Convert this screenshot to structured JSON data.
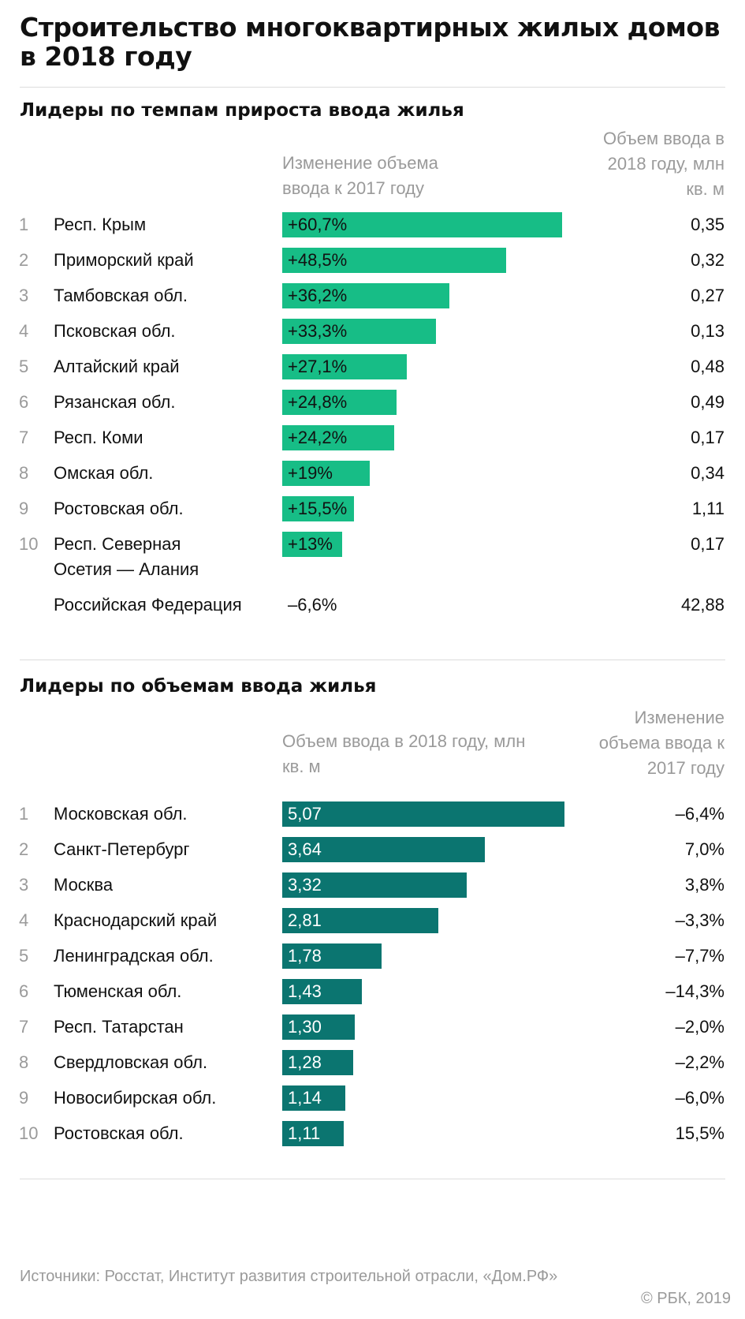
{
  "title": "Строительство многоквартирных жилых домов в 2018 году",
  "chart_data": [
    {
      "type": "bar",
      "title": "Лидеры по темпам прироста ввода жилья",
      "bar_header": "Изменение объема ввода к 2017 году",
      "value_header": "Объем ввода в 2018 году, млн кв. м",
      "color": "#17bd86",
      "rows": [
        {
          "rank": "1",
          "region": "Респ. Крым",
          "change": 60.7,
          "change_label": "+60,7%",
          "volume_label": "0,35"
        },
        {
          "rank": "2",
          "region": "Приморский край",
          "change": 48.5,
          "change_label": "+48,5%",
          "volume_label": "0,32"
        },
        {
          "rank": "3",
          "region": "Тамбовская обл.",
          "change": 36.2,
          "change_label": "+36,2%",
          "volume_label": "0,27"
        },
        {
          "rank": "4",
          "region": "Псковская обл.",
          "change": 33.3,
          "change_label": "+33,3%",
          "volume_label": "0,13"
        },
        {
          "rank": "5",
          "region": "Алтайский край",
          "change": 27.1,
          "change_label": "+27,1%",
          "volume_label": "0,48"
        },
        {
          "rank": "6",
          "region": "Рязанская обл.",
          "change": 24.8,
          "change_label": "+24,8%",
          "volume_label": "0,49"
        },
        {
          "rank": "7",
          "region": "Респ. Коми",
          "change": 24.2,
          "change_label": "+24,2%",
          "volume_label": "0,17"
        },
        {
          "rank": "8",
          "region": "Омская обл.",
          "change": 19,
          "change_label": "+19%",
          "volume_label": "0,34"
        },
        {
          "rank": "9",
          "region": "Ростовская обл.",
          "change": 15.5,
          "change_label": "+15,5%",
          "volume_label": "1,11"
        },
        {
          "rank": "10",
          "region": "Респ. Северная Осетия — Алания",
          "change": 13,
          "change_label": "+13%",
          "volume_label": "0,17"
        }
      ],
      "total": {
        "region": "Российская Федерация",
        "change_label": "–6,6%",
        "volume_label": "42,88"
      }
    },
    {
      "type": "bar",
      "title": "Лидеры по объемам ввода жилья",
      "bar_header": "Объем ввода в 2018 году, млн кв. м",
      "value_header": "Изменение объема ввода к 2017 году",
      "color": "#0b7570",
      "rows": [
        {
          "rank": "1",
          "region": "Московская обл.",
          "volume": 5.07,
          "volume_label": "5,07",
          "change_label": "–6,4%"
        },
        {
          "rank": "2",
          "region": "Санкт-Петербург",
          "volume": 3.64,
          "volume_label": "3,64",
          "change_label": "7,0%"
        },
        {
          "rank": "3",
          "region": "Москва",
          "volume": 3.32,
          "volume_label": "3,32",
          "change_label": "3,8%"
        },
        {
          "rank": "4",
          "region": "Краснодарский край",
          "volume": 2.81,
          "volume_label": "2,81",
          "change_label": "–3,3%"
        },
        {
          "rank": "5",
          "region": "Ленинградская обл.",
          "volume": 1.78,
          "volume_label": "1,78",
          "change_label": "–7,7%"
        },
        {
          "rank": "6",
          "region": "Тюменская обл.",
          "volume": 1.43,
          "volume_label": "1,43",
          "change_label": "–14,3%"
        },
        {
          "rank": "7",
          "region": "Респ. Татарстан",
          "volume": 1.3,
          "volume_label": "1,30",
          "change_label": "–2,0%"
        },
        {
          "rank": "8",
          "region": "Свердловская обл.",
          "volume": 1.28,
          "volume_label": "1,28",
          "change_label": "–2,2%"
        },
        {
          "rank": "9",
          "region": "Новосибирская обл.",
          "volume": 1.14,
          "volume_label": "1,14",
          "change_label": "–6,0%"
        },
        {
          "rank": "10",
          "region": "Ростовская обл.",
          "volume": 1.11,
          "volume_label": "1,11",
          "change_label": "15,5%"
        }
      ]
    }
  ],
  "footer": {
    "sources": "Источники: Росстат, Институт развития строительной отрасли, «Дом.РФ»",
    "copyright": "© РБК, 2019"
  }
}
